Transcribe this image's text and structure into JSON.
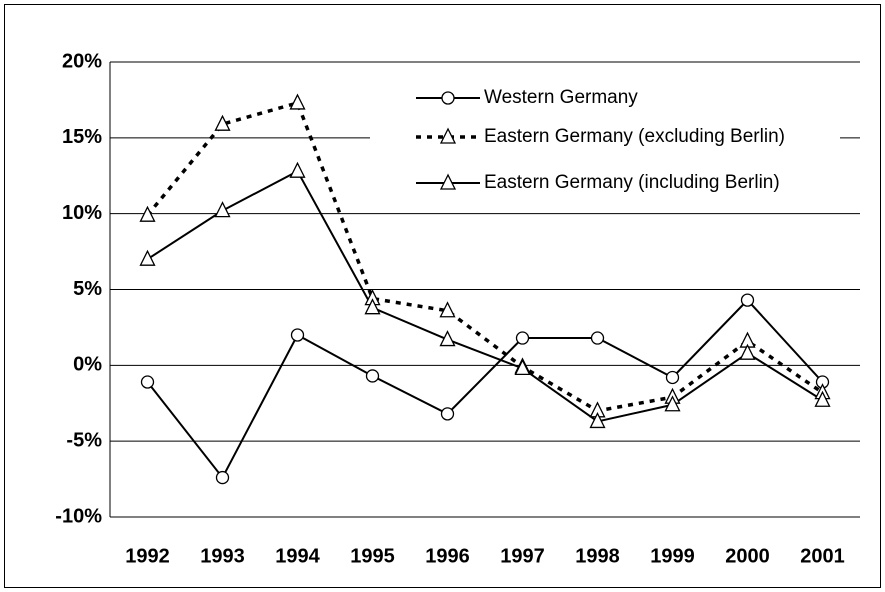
{
  "chart_data": {
    "type": "line",
    "categories": [
      "1992",
      "1993",
      "1994",
      "1995",
      "1996",
      "1997",
      "1998",
      "1999",
      "2000",
      "2001"
    ],
    "series": [
      {
        "name": "Western Germany",
        "color": "#000000",
        "marker": "circle",
        "dashed": false,
        "values": [
          -1.1,
          -7.4,
          2.0,
          -0.7,
          -3.2,
          1.8,
          1.8,
          -0.8,
          4.3,
          -1.1
        ]
      },
      {
        "name": "Eastern Germany (excluding Berlin)",
        "color": "#000000",
        "marker": "triangle",
        "dashed": true,
        "values": [
          9.9,
          15.9,
          17.3,
          4.4,
          3.6,
          -0.1,
          -3.0,
          -2.1,
          1.6,
          -1.8
        ]
      },
      {
        "name": "Eastern Germany (including Berlin)",
        "color": "#000000",
        "marker": "triangle",
        "dashed": false,
        "values": [
          7.0,
          10.2,
          12.8,
          3.8,
          1.7,
          -0.2,
          -3.7,
          -2.6,
          0.8,
          -2.3
        ]
      }
    ],
    "ylim": [
      -10,
      20
    ],
    "yticks": [
      {
        "value": -10,
        "label": "-10%"
      },
      {
        "value": -5,
        "label": "-5%"
      },
      {
        "value": 0,
        "label": "0%"
      },
      {
        "value": 5,
        "label": "5%"
      },
      {
        "value": 10,
        "label": "10%"
      },
      {
        "value": 15,
        "label": "15%"
      },
      {
        "value": 20,
        "label": "20%"
      }
    ],
    "grid": true,
    "legend": "top-right"
  }
}
